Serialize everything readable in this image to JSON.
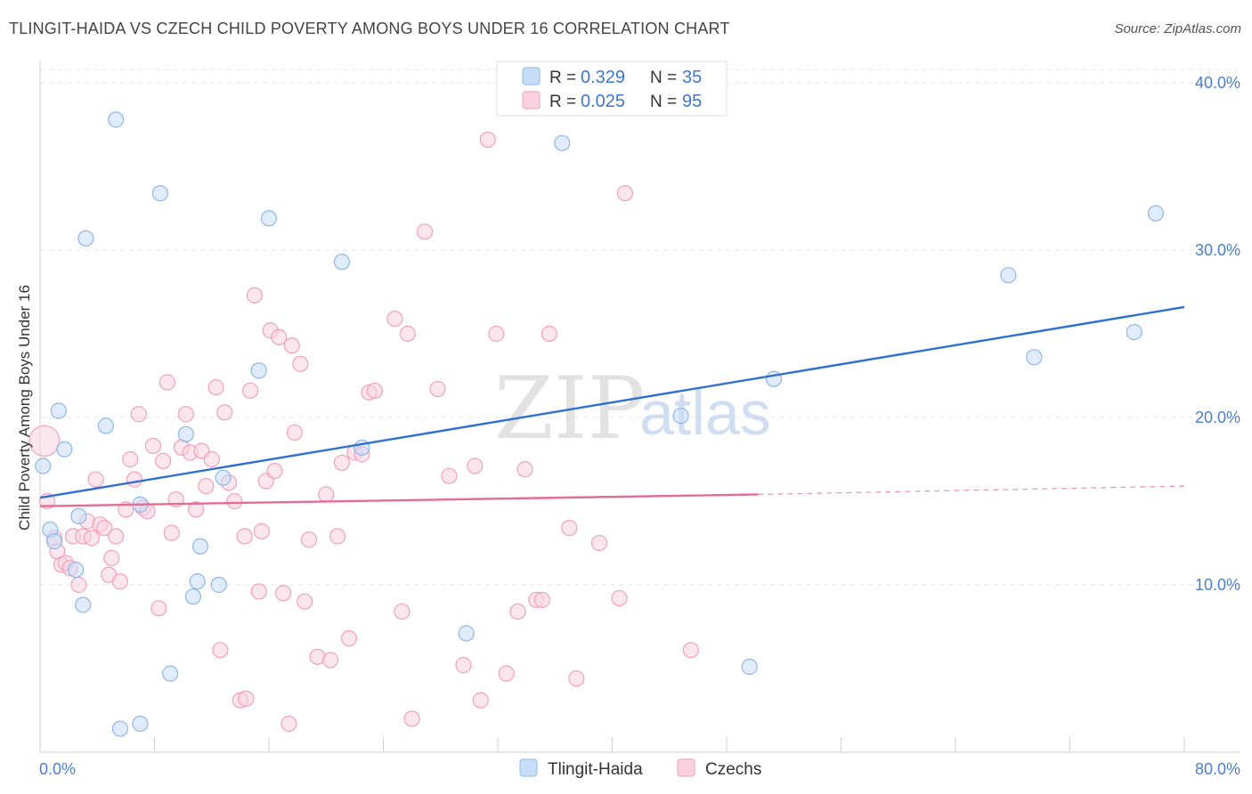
{
  "header": {
    "title": "TLINGIT-HAIDA VS CZECH CHILD POVERTY AMONG BOYS UNDER 16 CORRELATION CHART",
    "source": "Source: ZipAtlas.com"
  },
  "watermark": {
    "zip": "ZIP",
    "atlas": "atlas"
  },
  "legend_top": [
    {
      "r_label": "R = ",
      "r_value": "0.329",
      "n_label": "N = ",
      "n_value": "35",
      "color": "#9ec2ee",
      "fill": "#c7dcf7"
    },
    {
      "r_label": "R = ",
      "r_value": "0.025",
      "n_label": "N = ",
      "n_value": "95",
      "color": "#f2a8c2",
      "fill": "#fad1de"
    }
  ],
  "legend_bottom": [
    {
      "label": "Tlingit-Haida",
      "color": "#9ec2ee",
      "fill": "#c7dcf7"
    },
    {
      "label": "Czechs",
      "color": "#f2a8c2",
      "fill": "#fad1de"
    }
  ],
  "chart_data": {
    "type": "scatter",
    "title": "TLINGIT-HAIDA VS CZECH CHILD POVERTY AMONG BOYS UNDER 16 CORRELATION CHART",
    "xlabel": "",
    "ylabel": "Child Poverty Among Boys Under 16",
    "xlim": [
      0,
      80
    ],
    "ylim": [
      0,
      40
    ],
    "x_tick_labels": [
      "0.0%",
      "80.0%"
    ],
    "y_tick_labels": [
      "10.0%",
      "20.0%",
      "30.0%",
      "40.0%"
    ],
    "y_ticks": [
      10,
      20,
      30,
      40
    ],
    "grid": true,
    "legend_position": "top-center",
    "series": [
      {
        "name": "Tlingit-Haida",
        "stroke": "#8fb6e8",
        "fill": "#c7dcf7",
        "trend_color": "#2f6fd0",
        "trend": {
          "x": [
            0,
            80
          ],
          "y": [
            15.2,
            26.6
          ]
        },
        "points": [
          [
            5.3,
            37.8
          ],
          [
            8.4,
            33.4
          ],
          [
            3.2,
            30.7
          ],
          [
            16.0,
            31.9
          ],
          [
            21.1,
            29.3
          ],
          [
            36.5,
            36.4
          ],
          [
            1.3,
            20.4
          ],
          [
            4.6,
            19.5
          ],
          [
            1.7,
            18.1
          ],
          [
            10.2,
            19.0
          ],
          [
            0.2,
            17.1
          ],
          [
            15.3,
            22.8
          ],
          [
            22.5,
            18.2
          ],
          [
            12.8,
            16.4
          ],
          [
            7.0,
            14.8
          ],
          [
            2.7,
            14.1
          ],
          [
            0.7,
            13.3
          ],
          [
            1.0,
            12.6
          ],
          [
            2.5,
            10.9
          ],
          [
            11.2,
            12.3
          ],
          [
            11.0,
            10.2
          ],
          [
            12.5,
            10.0
          ],
          [
            10.7,
            9.3
          ],
          [
            3.0,
            8.8
          ],
          [
            9.1,
            4.7
          ],
          [
            29.8,
            7.1
          ],
          [
            5.6,
            1.4
          ],
          [
            7.0,
            1.7
          ],
          [
            44.8,
            20.1
          ],
          [
            51.3,
            22.3
          ],
          [
            67.7,
            28.5
          ],
          [
            69.5,
            23.6
          ],
          [
            76.5,
            25.1
          ],
          [
            78.0,
            32.2
          ],
          [
            49.6,
            5.1
          ]
        ]
      },
      {
        "name": "Czechs",
        "stroke": "#f0a0bc",
        "fill": "#fad1de",
        "trend_color": "#e46b95",
        "trend": {
          "x": [
            0,
            50.2
          ],
          "y": [
            14.7,
            15.4
          ]
        },
        "trend_dashed": {
          "x": [
            50.2,
            80
          ],
          "y": [
            15.4,
            15.9
          ]
        },
        "points": [
          [
            0.3,
            18.6
          ],
          [
            0.5,
            15.0
          ],
          [
            1.0,
            12.8
          ],
          [
            1.2,
            12.0
          ],
          [
            1.5,
            11.2
          ],
          [
            1.8,
            11.3
          ],
          [
            2.1,
            11.0
          ],
          [
            2.3,
            12.9
          ],
          [
            2.7,
            10.0
          ],
          [
            3.0,
            12.9
          ],
          [
            3.3,
            13.8
          ],
          [
            3.6,
            12.8
          ],
          [
            3.9,
            16.3
          ],
          [
            4.2,
            13.6
          ],
          [
            4.5,
            13.4
          ],
          [
            4.8,
            10.6
          ],
          [
            5.0,
            11.6
          ],
          [
            5.3,
            12.9
          ],
          [
            5.6,
            10.2
          ],
          [
            6.0,
            14.5
          ],
          [
            6.3,
            17.5
          ],
          [
            6.6,
            16.3
          ],
          [
            6.9,
            20.2
          ],
          [
            7.2,
            14.6
          ],
          [
            7.5,
            14.4
          ],
          [
            7.9,
            18.3
          ],
          [
            8.3,
            8.6
          ],
          [
            8.6,
            17.4
          ],
          [
            8.9,
            22.1
          ],
          [
            9.2,
            13.1
          ],
          [
            9.5,
            15.1
          ],
          [
            9.9,
            18.2
          ],
          [
            10.2,
            20.2
          ],
          [
            10.5,
            17.9
          ],
          [
            10.9,
            14.5
          ],
          [
            11.3,
            18.0
          ],
          [
            11.6,
            15.9
          ],
          [
            12.0,
            17.5
          ],
          [
            12.3,
            21.8
          ],
          [
            12.6,
            6.1
          ],
          [
            12.9,
            20.3
          ],
          [
            13.2,
            16.1
          ],
          [
            13.6,
            15.0
          ],
          [
            14.0,
            3.1
          ],
          [
            14.3,
            12.9
          ],
          [
            14.4,
            3.2
          ],
          [
            14.7,
            21.6
          ],
          [
            15.0,
            27.3
          ],
          [
            15.3,
            9.6
          ],
          [
            15.5,
            13.2
          ],
          [
            15.8,
            16.2
          ],
          [
            16.1,
            25.2
          ],
          [
            16.4,
            16.8
          ],
          [
            16.7,
            24.8
          ],
          [
            17.0,
            9.5
          ],
          [
            17.4,
            1.7
          ],
          [
            17.6,
            24.3
          ],
          [
            17.8,
            19.1
          ],
          [
            18.2,
            23.2
          ],
          [
            18.5,
            9.0
          ],
          [
            18.8,
            12.7
          ],
          [
            19.4,
            5.7
          ],
          [
            20.0,
            15.4
          ],
          [
            20.3,
            5.5
          ],
          [
            20.8,
            12.9
          ],
          [
            21.1,
            17.3
          ],
          [
            21.6,
            6.8
          ],
          [
            22.0,
            17.9
          ],
          [
            22.5,
            17.8
          ],
          [
            23.0,
            21.5
          ],
          [
            23.4,
            21.6
          ],
          [
            24.8,
            25.9
          ],
          [
            25.3,
            8.4
          ],
          [
            25.7,
            25.0
          ],
          [
            26.0,
            2.0
          ],
          [
            26.9,
            31.1
          ],
          [
            27.8,
            21.7
          ],
          [
            28.6,
            16.5
          ],
          [
            29.6,
            5.2
          ],
          [
            30.4,
            17.1
          ],
          [
            30.8,
            3.1
          ],
          [
            31.3,
            36.6
          ],
          [
            31.9,
            25.0
          ],
          [
            32.6,
            4.7
          ],
          [
            33.4,
            8.4
          ],
          [
            33.9,
            16.9
          ],
          [
            34.7,
            9.1
          ],
          [
            35.1,
            9.1
          ],
          [
            35.6,
            25.0
          ],
          [
            37.0,
            13.4
          ],
          [
            37.5,
            4.4
          ],
          [
            39.1,
            12.5
          ],
          [
            40.5,
            9.2
          ],
          [
            40.9,
            33.4
          ],
          [
            45.5,
            6.1
          ]
        ]
      }
    ]
  }
}
